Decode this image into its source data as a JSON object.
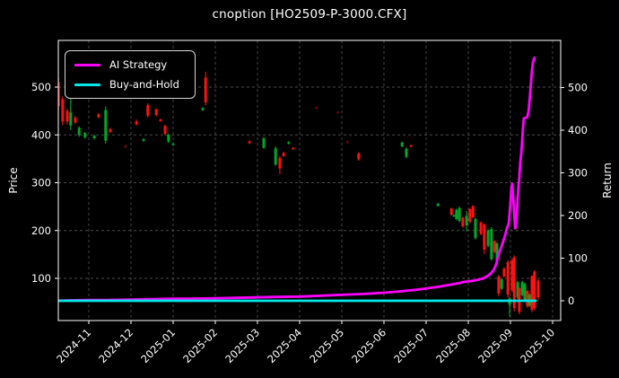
{
  "title": "cnoption [HO2509-P-3000.CFX]",
  "legend": {
    "items": [
      {
        "label": "AI Strategy",
        "color": "#ff00ff"
      },
      {
        "label": "Buy-and-Hold",
        "color": "#00e8e8"
      }
    ]
  },
  "axes": {
    "left_label": "Price",
    "right_label": "Return",
    "left_ticks": [
      100,
      200,
      300,
      400,
      500
    ],
    "right_ticks": [
      0,
      100,
      200,
      300,
      400,
      500
    ],
    "x_tick_labels": [
      "2024-11",
      "2024-12",
      "2025-01",
      "2025-02",
      "2025-03",
      "2025-04",
      "2025-05",
      "2025-06",
      "2025-07",
      "2025-08",
      "2025-09",
      "2025-10"
    ]
  },
  "colors": {
    "background": "#000000",
    "text": "#ffffff",
    "grid": "#5a5a5a",
    "spine": "#ffffff",
    "candle_up": "#00a82a",
    "candle_down": "#ff1111",
    "ai_strategy": "#ff00ff",
    "buy_and_hold": "#00e8e8"
  },
  "chart_data": {
    "type": "mixed",
    "title": "cnoption [HO2509-P-3000.CFX]",
    "x_unit": "months since 2024-11",
    "x_tick_labels": [
      "2024-11",
      "2024-12",
      "2025-01",
      "2025-02",
      "2025-03",
      "2025-04",
      "2025-05",
      "2025-06",
      "2025-07",
      "2025-08",
      "2025-09",
      "2025-10"
    ],
    "left_axis": {
      "label": "Price",
      "ticks": [
        100,
        200,
        300,
        400,
        500
      ],
      "range_approx": [
        10,
        600
      ]
    },
    "right_axis": {
      "label": "Return",
      "ticks": [
        0,
        100,
        200,
        300,
        400,
        500
      ],
      "range_approx": [
        -46,
        610
      ]
    },
    "grid": {
      "on": true,
      "style": "dashed",
      "color": "#5a5a5a"
    },
    "legend_position": "upper-left",
    "series": [
      {
        "name": "Price candles",
        "type": "candlestick",
        "axis": "left",
        "up_color": "#00a82a",
        "down_color": "#ff1111",
        "format": "[t, open, high, low, close, dim?]",
        "candles": [
          [
            -0.72,
            510,
            520,
            450,
            460
          ],
          [
            -0.62,
            475,
            480,
            420,
            428
          ],
          [
            -0.51,
            450,
            455,
            422,
            428
          ],
          [
            -0.43,
            420,
            500,
            410,
            447
          ],
          [
            -0.32,
            436,
            440,
            423,
            426
          ],
          [
            -0.23,
            400,
            418,
            396,
            415
          ],
          [
            -0.09,
            395,
            406,
            392,
            404
          ],
          [
            0.13,
            393,
            400,
            390,
            398
          ],
          [
            0.23,
            443,
            446,
            435,
            437
          ],
          [
            0.4,
            388,
            460,
            382,
            452
          ],
          [
            0.51,
            412,
            415,
            404,
            406
          ],
          [
            0.87,
            378,
            380,
            372,
            374,
            1
          ],
          [
            1.13,
            428,
            432,
            420,
            422
          ],
          [
            1.3,
            388,
            393,
            385,
            391
          ],
          [
            1.4,
            462,
            466,
            436,
            440
          ],
          [
            1.6,
            453,
            456,
            438,
            442
          ],
          [
            1.7,
            432,
            434,
            427,
            429
          ],
          [
            1.81,
            419,
            421,
            399,
            402
          ],
          [
            1.89,
            386,
            403,
            383,
            400
          ],
          [
            2.0,
            379,
            384,
            377,
            382
          ],
          [
            2.7,
            452,
            458,
            450,
            456
          ],
          [
            2.77,
            520,
            532,
            462,
            468
          ],
          [
            3.81,
            386,
            389,
            381,
            383
          ],
          [
            4.15,
            373,
            396,
            371,
            393
          ],
          [
            4.43,
            338,
            376,
            335,
            372
          ],
          [
            4.53,
            352,
            356,
            318,
            330
          ],
          [
            4.62,
            362,
            365,
            354,
            356
          ],
          [
            4.74,
            382,
            387,
            380,
            385
          ],
          [
            4.85,
            373,
            375,
            369,
            370
          ],
          [
            5.4,
            458,
            460,
            454,
            455,
            1
          ],
          [
            5.91,
            448,
            450,
            444,
            446,
            1
          ],
          [
            6.13,
            386,
            388,
            382,
            384,
            1
          ],
          [
            6.4,
            361,
            364,
            346,
            349
          ],
          [
            7.43,
            376,
            386,
            374,
            384
          ],
          [
            7.53,
            354,
            374,
            351,
            371
          ],
          [
            7.64,
            378,
            380,
            374,
            376
          ],
          [
            8.28,
            252,
            258,
            250,
            256
          ],
          [
            8.6,
            246,
            248,
            231,
            233
          ],
          [
            8.66,
            230,
            234,
            228,
            232
          ],
          [
            8.72,
            224,
            246,
            221,
            243
          ],
          [
            8.79,
            220,
            250,
            217,
            247
          ],
          [
            8.87,
            227,
            229,
            206,
            209
          ],
          [
            8.96,
            211,
            241,
            198,
            231
          ],
          [
            9.04,
            245,
            247,
            215,
            218
          ],
          [
            9.11,
            251,
            253,
            225,
            228
          ],
          [
            9.17,
            184,
            227,
            181,
            224
          ],
          [
            9.3,
            217,
            219,
            190,
            193
          ],
          [
            9.38,
            213,
            215,
            151,
            160
          ],
          [
            9.47,
            168,
            203,
            165,
            200
          ],
          [
            9.55,
            140,
            207,
            137,
            203
          ],
          [
            9.62,
            178,
            180,
            152,
            155
          ],
          [
            9.68,
            130,
            176,
            127,
            173
          ],
          [
            9.72,
            104,
            107,
            63,
            68
          ],
          [
            9.79,
            78,
            101,
            75,
            98
          ],
          [
            9.85,
            120,
            123,
            101,
            104
          ],
          [
            9.94,
            134,
            138,
            60,
            66
          ],
          [
            9.98,
            45,
            62,
            20,
            58
          ],
          [
            10.04,
            138,
            142,
            71,
            76
          ],
          [
            10.09,
            144,
            148,
            31,
            38
          ],
          [
            10.17,
            60,
            95,
            57,
            92
          ],
          [
            10.21,
            80,
            82,
            25,
            30
          ],
          [
            10.28,
            65,
            95,
            62,
            92
          ],
          [
            10.34,
            55,
            91,
            52,
            88
          ],
          [
            10.4,
            74,
            76,
            38,
            42
          ],
          [
            10.45,
            43,
            69,
            40,
            66
          ],
          [
            10.51,
            104,
            107,
            29,
            34
          ],
          [
            10.57,
            114,
            117,
            33,
            38
          ],
          [
            10.66,
            95,
            98,
            55,
            60
          ]
        ]
      },
      {
        "name": "AI Strategy",
        "type": "line",
        "axis": "right",
        "color": "#ff00ff",
        "format": "[t, return]",
        "points": [
          [
            -0.79,
            0
          ],
          [
            -0.4,
            1
          ],
          [
            0,
            2
          ],
          [
            0.45,
            2
          ],
          [
            1,
            3
          ],
          [
            1.51,
            4
          ],
          [
            2,
            5
          ],
          [
            2.49,
            5
          ],
          [
            3,
            6
          ],
          [
            3.51,
            7
          ],
          [
            4,
            8
          ],
          [
            4.49,
            9
          ],
          [
            5,
            10
          ],
          [
            5.51,
            12
          ],
          [
            6,
            14
          ],
          [
            6.51,
            16
          ],
          [
            7,
            19
          ],
          [
            7.36,
            22
          ],
          [
            7.68,
            25
          ],
          [
            7.94,
            28
          ],
          [
            8.15,
            31
          ],
          [
            8.32,
            33
          ],
          [
            8.47,
            36
          ],
          [
            8.6,
            38
          ],
          [
            8.7,
            40
          ],
          [
            8.81,
            42
          ],
          [
            8.87,
            44
          ],
          [
            8.96,
            45
          ],
          [
            9.04,
            46
          ],
          [
            9.13,
            47
          ],
          [
            9.21,
            49
          ],
          [
            9.3,
            51
          ],
          [
            9.38,
            54
          ],
          [
            9.47,
            59
          ],
          [
            9.53,
            64
          ],
          [
            9.6,
            72
          ],
          [
            9.66,
            85
          ],
          [
            9.7,
            100
          ],
          [
            9.74,
            115
          ],
          [
            9.79,
            128
          ],
          [
            9.83,
            140
          ],
          [
            9.87,
            152
          ],
          [
            9.91,
            168
          ],
          [
            9.96,
            182
          ],
          [
            10.0,
            230
          ],
          [
            10.02,
            262
          ],
          [
            10.04,
            274
          ],
          [
            10.06,
            250
          ],
          [
            10.09,
            205
          ],
          [
            10.11,
            170
          ],
          [
            10.13,
            172
          ],
          [
            10.15,
            200
          ],
          [
            10.17,
            240
          ],
          [
            10.19,
            267
          ],
          [
            10.21,
            290
          ],
          [
            10.23,
            320
          ],
          [
            10.26,
            350
          ],
          [
            10.28,
            380
          ],
          [
            10.3,
            410
          ],
          [
            10.32,
            428
          ],
          [
            10.36,
            429
          ],
          [
            10.4,
            431
          ],
          [
            10.43,
            445
          ],
          [
            10.45,
            465
          ],
          [
            10.47,
            490
          ],
          [
            10.49,
            515
          ],
          [
            10.51,
            540
          ],
          [
            10.53,
            557
          ],
          [
            10.55,
            565
          ],
          [
            10.57,
            570
          ]
        ]
      },
      {
        "name": "Buy-and-Hold",
        "type": "line",
        "axis": "right",
        "color": "#00e8e8",
        "format": "[t, return]",
        "points": [
          [
            -0.79,
            0
          ],
          [
            10.6,
            0
          ]
        ]
      }
    ]
  }
}
